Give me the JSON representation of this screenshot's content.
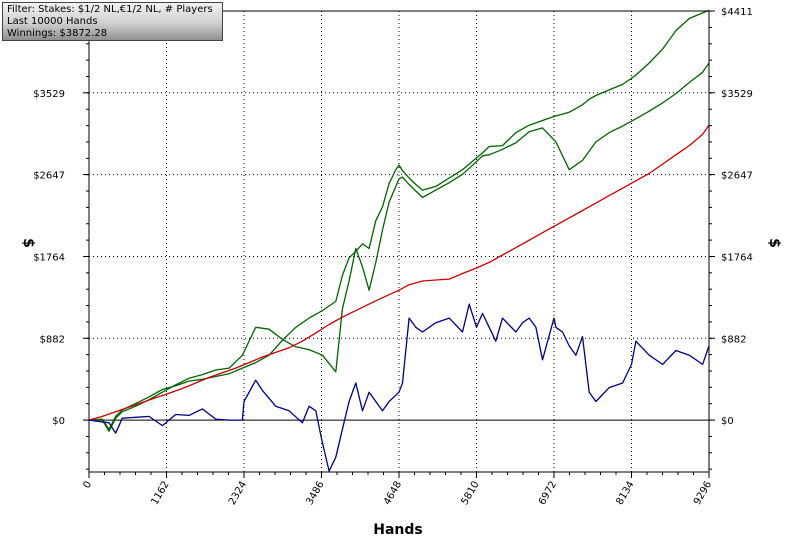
{
  "filter_box": {
    "line1": "Filter: Stakes: $1/2 NL,€1/2 NL, # Players",
    "line2": "Last  10000 Hands",
    "line3": "Winnings: $3872.28"
  },
  "chart_data": {
    "type": "line",
    "xlabel": "Hands",
    "ylabel": "$",
    "xlim": [
      0,
      9296
    ],
    "ylim": [
      -560,
      4411
    ],
    "x_ticks": [
      0,
      1162,
      2324,
      3486,
      4648,
      5810,
      6972,
      8134,
      9296
    ],
    "x_tick_labels": [
      "0",
      "1162",
      "2324",
      "3486",
      "4648",
      "5810",
      "6972",
      "8134",
      "9296"
    ],
    "y_ticks": [
      0,
      882,
      1764,
      2647,
      3529,
      4411
    ],
    "y_tick_labels": [
      "$0",
      "$882",
      "$1764",
      "$2647",
      "$3529",
      "$4411"
    ],
    "grid": true,
    "series": [
      {
        "color": "#006400",
        "x": [
          0,
          200,
          300,
          400,
          500,
          700,
          900,
          1100,
          1300,
          1500,
          1700,
          1900,
          2100,
          2300,
          2500,
          2700,
          2900,
          3100,
          3300,
          3500,
          3700,
          3800,
          3900,
          4000,
          4100,
          4200,
          4300,
          4400,
          4500,
          4600,
          4648,
          4700,
          4800,
          4900,
          5000,
          5200,
          5400,
          5600,
          5800,
          5900,
          6000,
          6200,
          6400,
          6600,
          6800,
          7000,
          7200,
          7400,
          7500,
          7600,
          7800,
          8000,
          8200,
          8400,
          8600,
          8800,
          9000,
          9200,
          9296
        ],
        "y": [
          0,
          10,
          -100,
          40,
          110,
          180,
          250,
          330,
          370,
          420,
          440,
          470,
          500,
          560,
          620,
          700,
          860,
          1000,
          1100,
          1180,
          1280,
          1560,
          1750,
          1820,
          1900,
          1850,
          2150,
          2300,
          2550,
          2700,
          2750,
          2690,
          2610,
          2540,
          2480,
          2520,
          2610,
          2700,
          2820,
          2880,
          2950,
          2960,
          3100,
          3180,
          3230,
          3280,
          3320,
          3400,
          3460,
          3500,
          3560,
          3620,
          3720,
          3850,
          4000,
          4200,
          4330,
          4390,
          4420
        ]
      },
      {
        "color": "#006400",
        "x": [
          0,
          200,
          300,
          400,
          500,
          700,
          900,
          1100,
          1300,
          1500,
          1700,
          1900,
          2100,
          2300,
          2500,
          2700,
          2900,
          3100,
          3300,
          3500,
          3700,
          3800,
          3900,
          4000,
          4100,
          4200,
          4300,
          4400,
          4500,
          4648,
          4700,
          4800,
          4900,
          5000,
          5200,
          5400,
          5600,
          5800,
          5900,
          6000,
          6200,
          6400,
          6600,
          6800,
          7000,
          7200,
          7400,
          7500,
          7600,
          7800,
          8000,
          8200,
          8400,
          8600,
          8800,
          9000,
          9200,
          9296
        ],
        "y": [
          0,
          0,
          -120,
          20,
          90,
          150,
          220,
          300,
          380,
          450,
          490,
          540,
          560,
          700,
          1000,
          980,
          870,
          790,
          760,
          700,
          520,
          1200,
          1500,
          1850,
          1650,
          1400,
          1700,
          2050,
          2350,
          2600,
          2620,
          2540,
          2470,
          2400,
          2480,
          2560,
          2650,
          2780,
          2850,
          2860,
          2920,
          2990,
          3110,
          3150,
          3000,
          2700,
          2800,
          2900,
          3000,
          3100,
          3170,
          3250,
          3330,
          3420,
          3520,
          3640,
          3750,
          3850
        ]
      },
      {
        "color": "#cc0000",
        "x": [
          0,
          200,
          400,
          600,
          800,
          1000,
          1200,
          1400,
          1600,
          1800,
          2000,
          2200,
          2400,
          2600,
          2800,
          3000,
          3200,
          3400,
          3600,
          3800,
          4000,
          4200,
          4400,
          4648,
          4800,
          5000,
          5200,
          5400,
          5600,
          5810,
          6000,
          6200,
          6400,
          6600,
          6800,
          7000,
          7200,
          7400,
          7600,
          7800,
          8000,
          8200,
          8400,
          8600,
          8800,
          9000,
          9200,
          9296
        ],
        "y": [
          0,
          40,
          90,
          140,
          190,
          240,
          290,
          340,
          400,
          460,
          510,
          560,
          620,
          680,
          730,
          780,
          850,
          940,
          1030,
          1110,
          1180,
          1250,
          1320,
          1400,
          1460,
          1500,
          1510,
          1520,
          1580,
          1640,
          1700,
          1780,
          1860,
          1940,
          2020,
          2100,
          2180,
          2260,
          2340,
          2420,
          2500,
          2580,
          2660,
          2760,
          2860,
          2960,
          3080,
          3180
        ]
      },
      {
        "color": "#00008b",
        "x": [
          0,
          300,
          400,
          500,
          700,
          900,
          1100,
          1300,
          1500,
          1700,
          1900,
          2100,
          2300,
          2324,
          2500,
          2600,
          2800,
          3000,
          3200,
          3300,
          3400,
          3486,
          3600,
          3700,
          3800,
          3900,
          4000,
          4100,
          4200,
          4300,
          4400,
          4500,
          4648,
          4700,
          4800,
          4900,
          5000,
          5200,
          5400,
          5600,
          5700,
          5810,
          5900,
          6000,
          6100,
          6200,
          6400,
          6500,
          6600,
          6700,
          6800,
          6972,
          7000,
          7100,
          7200,
          7300,
          7400,
          7500,
          7600,
          7800,
          8000,
          8134,
          8200,
          8400,
          8600,
          8800,
          9000,
          9200,
          9296
        ],
        "y": [
          0,
          -30,
          -140,
          20,
          30,
          40,
          -60,
          60,
          50,
          120,
          10,
          0,
          0,
          200,
          430,
          320,
          150,
          100,
          -30,
          150,
          100,
          -200,
          -550,
          -400,
          -100,
          200,
          400,
          100,
          300,
          200,
          100,
          200,
          300,
          400,
          1100,
          1000,
          950,
          1050,
          1100,
          950,
          1250,
          1000,
          1150,
          1000,
          850,
          1100,
          950,
          1050,
          1100,
          1000,
          650,
          1100,
          1000,
          950,
          800,
          700,
          900,
          300,
          200,
          350,
          400,
          600,
          850,
          700,
          600,
          750,
          700,
          600,
          800
        ]
      }
    ]
  }
}
